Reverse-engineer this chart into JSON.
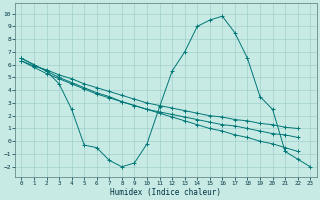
{
  "bg_color": "#c8eae4",
  "grid_color": "#a0d0cc",
  "line_color": "#007777",
  "xlabel": "Humidex (Indice chaleur)",
  "xlim": [
    -0.5,
    23.5
  ],
  "ylim": [
    -2.8,
    10.8
  ],
  "xticks": [
    0,
    1,
    2,
    3,
    4,
    5,
    6,
    7,
    8,
    9,
    10,
    11,
    12,
    13,
    14,
    15,
    16,
    17,
    18,
    19,
    20,
    21,
    22,
    23
  ],
  "yticks": [
    -2,
    -1,
    0,
    1,
    2,
    3,
    4,
    5,
    6,
    7,
    8,
    9,
    10
  ],
  "line1_x": [
    0,
    1,
    2,
    3,
    4,
    5,
    6,
    7,
    8,
    9,
    10,
    11,
    12,
    13,
    14,
    15,
    16,
    17,
    18,
    19,
    20,
    21,
    22,
    23
  ],
  "line1_y": [
    6.5,
    6.0,
    5.5,
    5.0,
    4.6,
    4.2,
    3.8,
    3.5,
    3.1,
    2.8,
    2.5,
    2.2,
    1.9,
    1.6,
    1.3,
    1.0,
    0.8,
    0.5,
    0.3,
    0.0,
    -0.2,
    -0.5,
    -0.8,
    null
  ],
  "line2_x": [
    0,
    1,
    2,
    3,
    4,
    5,
    6,
    7,
    8,
    9,
    10,
    11,
    12,
    13,
    14,
    15,
    16,
    17,
    18,
    19,
    20,
    21,
    22,
    23
  ],
  "line2_y": [
    6.3,
    5.8,
    5.3,
    4.9,
    4.5,
    4.1,
    3.7,
    3.4,
    3.1,
    2.8,
    2.5,
    2.3,
    2.1,
    1.9,
    1.7,
    1.5,
    1.3,
    1.2,
    1.0,
    0.8,
    0.6,
    0.5,
    0.3,
    null
  ],
  "line3_x": [
    0,
    2,
    3,
    4,
    5,
    6,
    7,
    8,
    9,
    10,
    11,
    12,
    13,
    14,
    15,
    16,
    17,
    18,
    19,
    20,
    21,
    22,
    23
  ],
  "line3_y": [
    6.5,
    5.5,
    4.5,
    2.5,
    -0.3,
    -0.5,
    -1.5,
    -2.0,
    -1.7,
    -0.2,
    2.7,
    5.5,
    7.0,
    9.0,
    9.5,
    9.8,
    8.5,
    6.5,
    3.5,
    2.5,
    -0.8,
    -1.4,
    -2.0
  ],
  "line4_x": [
    0,
    1,
    2,
    3,
    4,
    5,
    6,
    7,
    8,
    9,
    10,
    11,
    12,
    13,
    14,
    15,
    16,
    17,
    18,
    19,
    20,
    21,
    22,
    23
  ],
  "line4_y": [
    6.3,
    5.9,
    5.6,
    5.2,
    4.9,
    4.5,
    4.2,
    3.9,
    3.6,
    3.3,
    3.0,
    2.8,
    2.6,
    2.4,
    2.2,
    2.0,
    1.9,
    1.7,
    1.6,
    1.4,
    1.3,
    1.1,
    1.0,
    null
  ]
}
